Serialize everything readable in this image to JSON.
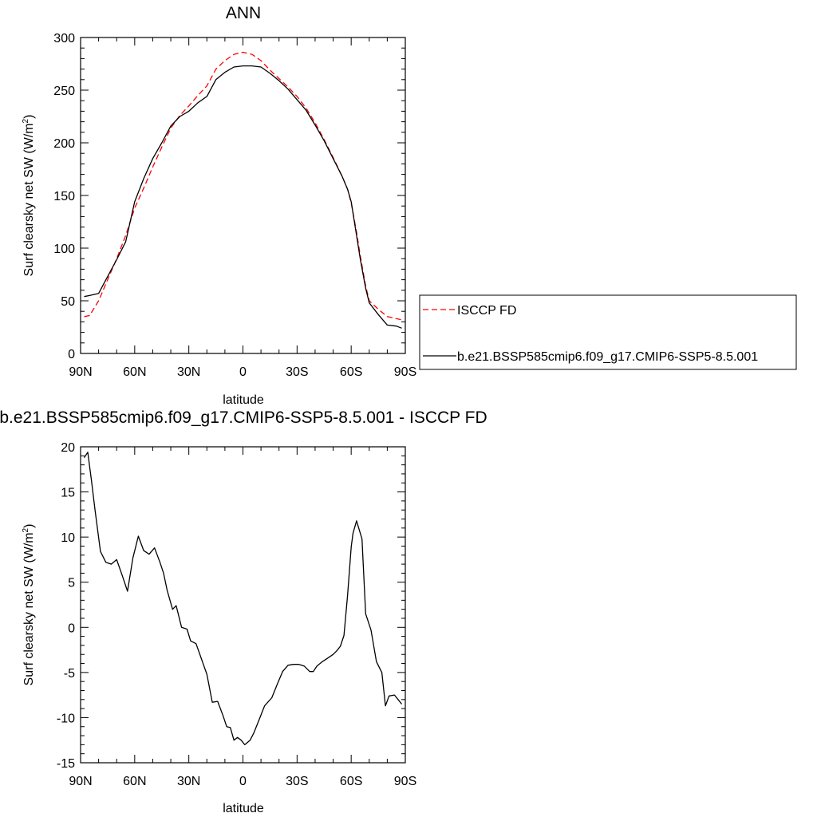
{
  "chart_data": [
    {
      "type": "line",
      "title": "ANN",
      "xlabel": "latitude",
      "ylabel": "Surf clearsky net SW (W/m",
      "ylabel_sup": "2",
      "ylabel_end": ")",
      "xlim": [
        90,
        -90
      ],
      "ylim": [
        0,
        300
      ],
      "x_ticks": [
        90,
        60,
        30,
        0,
        -30,
        -60,
        -90
      ],
      "x_tick_labels": [
        "90N",
        "60N",
        "30N",
        "0",
        "30S",
        "60S",
        "90S"
      ],
      "y_ticks": [
        0,
        50,
        100,
        150,
        200,
        250,
        300
      ],
      "y_tick_labels": [
        "0",
        "50",
        "100",
        "150",
        "200",
        "250",
        "300"
      ],
      "legend_placement": "right, outside",
      "series": [
        {
          "name": "ISCCP FD",
          "color": "#ff0000",
          "style": "dashed",
          "x": [
            88,
            85,
            80,
            75,
            70,
            65,
            60,
            55,
            50,
            45,
            40,
            35,
            30,
            25,
            20,
            15,
            10,
            5,
            0,
            -5,
            -10,
            -15,
            -20,
            -25,
            -30,
            -35,
            -40,
            -45,
            -50,
            -55,
            -58,
            -60,
            -63,
            -65,
            -68,
            -70,
            -75,
            -80,
            -85,
            -88
          ],
          "y": [
            35,
            36,
            50,
            70,
            90,
            112,
            138,
            157,
            177,
            196,
            214,
            226,
            235,
            245,
            254,
            270,
            278,
            284,
            286,
            284,
            278,
            269,
            261,
            253,
            244,
            233,
            219,
            203,
            186,
            168,
            156,
            143,
            115,
            93,
            64,
            50,
            42,
            35,
            33,
            32
          ]
        },
        {
          "name": "b.e21.BSSP585cmip6.f09_g17.CMIP6-SSP5-8.5.001",
          "color": "#000000",
          "style": "solid",
          "x": [
            88,
            85,
            80,
            75,
            70,
            65,
            60,
            55,
            50,
            45,
            40,
            35,
            30,
            25,
            20,
            15,
            10,
            5,
            0,
            -5,
            -10,
            -15,
            -20,
            -25,
            -30,
            -35,
            -40,
            -45,
            -50,
            -55,
            -58,
            -60,
            -63,
            -65,
            -68,
            -70,
            -75,
            -80,
            -85,
            -88
          ],
          "y": [
            54,
            55,
            57,
            73,
            89,
            106,
            144,
            166,
            185,
            200,
            216,
            225,
            230,
            238,
            244,
            260,
            267,
            272,
            273,
            273,
            272,
            266,
            259,
            251,
            241,
            231,
            217,
            202,
            185,
            168,
            156,
            144,
            112,
            90,
            62,
            48,
            37,
            27,
            26,
            24
          ]
        }
      ]
    },
    {
      "type": "line",
      "title": "b.e21.BSSP585cmip6.f09_g17.CMIP6-SSP5-8.5.001 - ISCCP FD",
      "xlabel": "latitude",
      "ylabel": "Surf clearsky net SW (W/m",
      "ylabel_sup": "2",
      "ylabel_end": ")",
      "xlim": [
        90,
        -90
      ],
      "ylim": [
        -15,
        20
      ],
      "x_ticks": [
        90,
        60,
        30,
        0,
        -30,
        -60,
        -90
      ],
      "x_tick_labels": [
        "90N",
        "60N",
        "30N",
        "0",
        "30S",
        "60S",
        "90S"
      ],
      "y_ticks": [
        -15,
        -10,
        -5,
        0,
        5,
        10,
        15,
        20
      ],
      "y_tick_labels": [
        "-15",
        "-10",
        "-5",
        "0",
        "5",
        "10",
        "15",
        "20"
      ],
      "series": [
        {
          "color": "#000000",
          "style": "solid",
          "x": [
            88,
            86,
            84,
            82,
            79,
            76,
            73,
            70,
            67,
            64,
            61,
            58,
            55,
            52,
            49,
            46,
            44,
            42,
            39,
            37,
            34,
            31,
            29,
            26,
            23,
            20,
            17,
            14,
            11,
            9,
            7,
            5,
            3,
            1,
            -1,
            -4,
            -6,
            -9,
            -12,
            -16,
            -19,
            -22,
            -25,
            -28,
            -31,
            -34,
            -37,
            -39,
            -41,
            -44,
            -47,
            -50,
            -52,
            -54,
            -56,
            -58,
            -60,
            -61,
            -63,
            -66,
            -68,
            -71,
            -74,
            -77,
            -79,
            -81,
            -84,
            -86,
            -88
          ],
          "y": [
            18.8,
            19.4,
            16.3,
            13.0,
            8.4,
            7.2,
            7.0,
            7.5,
            5.8,
            4.0,
            7.7,
            10.1,
            8.5,
            8.1,
            8.8,
            7.2,
            6.0,
            4.1,
            2.0,
            2.4,
            0.0,
            -0.2,
            -1.5,
            -1.8,
            -3.5,
            -5.2,
            -8.3,
            -8.2,
            -9.8,
            -11.0,
            -11.1,
            -12.5,
            -12.2,
            -12.5,
            -13.0,
            -12.5,
            -11.7,
            -10.2,
            -8.7,
            -7.8,
            -6.3,
            -4.9,
            -4.2,
            -4.1,
            -4.1,
            -4.3,
            -4.9,
            -4.9,
            -4.3,
            -3.8,
            -3.4,
            -3.0,
            -2.6,
            -2.1,
            -0.9,
            3.5,
            8.9,
            10.4,
            11.8,
            9.8,
            1.5,
            -0.3,
            -3.8,
            -5.0,
            -8.7,
            -7.6,
            -7.5,
            -8.0,
            -8.5
          ]
        }
      ]
    }
  ]
}
